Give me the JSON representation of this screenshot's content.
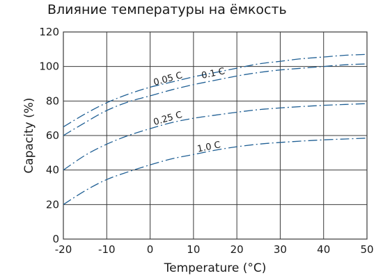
{
  "chart_data": {
    "type": "line",
    "title": "Влияние температуры на ёмкость",
    "xlabel": "Temperature (°C)",
    "ylabel": "Capacity (%)",
    "xlim": [
      -20,
      50
    ],
    "ylim": [
      0,
      120
    ],
    "xticks": [
      -20,
      -10,
      0,
      10,
      20,
      30,
      40,
      50
    ],
    "yticks": [
      0,
      20,
      40,
      60,
      80,
      100,
      120
    ],
    "xtick_labels": [
      "-20",
      "-10",
      "0",
      "10",
      "20",
      "30",
      "40",
      "50"
    ],
    "ytick_labels": [
      "0",
      "20",
      "40",
      "60",
      "80",
      "100",
      "120"
    ],
    "grid": true,
    "legend": "none",
    "color": "#1f5f94",
    "x": [
      -20,
      -15,
      -10,
      -5,
      0,
      5,
      10,
      15,
      20,
      25,
      30,
      35,
      40,
      45,
      50
    ],
    "series": [
      {
        "name": "0.05 C",
        "values": [
          65,
          72.5,
          79,
          84,
          88,
          91,
          94,
          96.5,
          99,
          101.5,
          103,
          104.5,
          105.5,
          106.5,
          107
        ],
        "label_at": [
          1,
          89
        ]
      },
      {
        "name": "0.1 C",
        "values": [
          60,
          67.5,
          74.5,
          79.5,
          83,
          86.5,
          89.5,
          92,
          94.5,
          96.5,
          98,
          99,
          100,
          101,
          101.5
        ],
        "label_at": [
          12,
          93
        ]
      },
      {
        "name": "0.25 C",
        "values": [
          40,
          48.5,
          55,
          60,
          64,
          67.5,
          70,
          71.8,
          73.5,
          75,
          76,
          76.8,
          77.5,
          78,
          78.5
        ],
        "label_at": [
          1,
          66
        ]
      },
      {
        "name": "1.0 C",
        "values": [
          20,
          28,
          34.5,
          39,
          43,
          46.5,
          49,
          51.5,
          53.5,
          55,
          56,
          56.8,
          57.5,
          58,
          58.5
        ],
        "label_at": [
          11,
          50.5
        ]
      }
    ]
  }
}
